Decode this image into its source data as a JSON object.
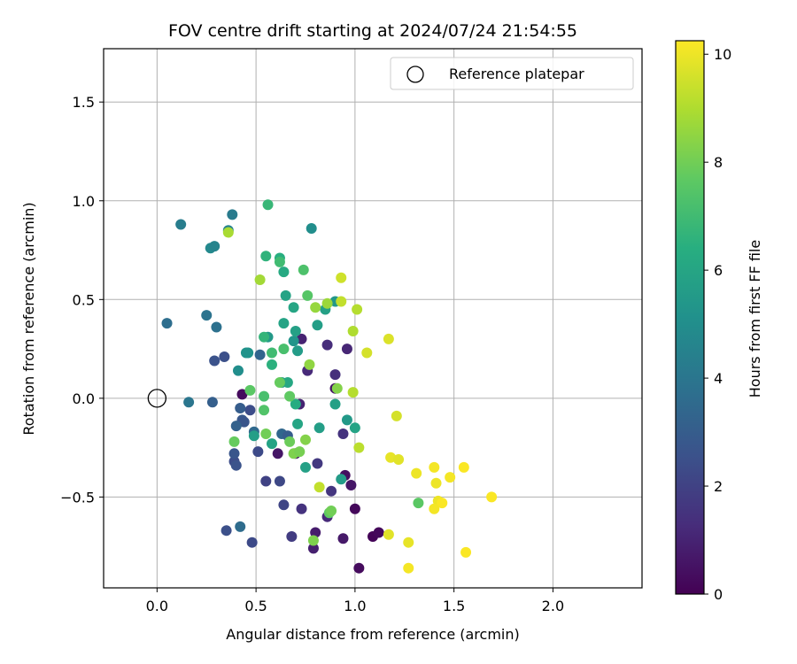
{
  "chart_data": {
    "type": "scatter",
    "title": "FOV centre drift starting at 2024/07/24 21:54:55",
    "xlabel": "Angular distance from reference (arcmin)",
    "ylabel": "Rotation from reference (arcmin)",
    "xlim": [
      -0.27,
      2.45
    ],
    "ylim": [
      -0.96,
      1.77
    ],
    "xticks": [
      0.0,
      0.5,
      1.0,
      1.5,
      2.0
    ],
    "xtick_labels": [
      "0.0",
      "0.5",
      "1.0",
      "1.5",
      "2.0"
    ],
    "yticks": [
      -0.5,
      0.0,
      0.5,
      1.0,
      1.5
    ],
    "ytick_labels": [
      "−0.5",
      "0.0",
      "0.5",
      "1.0",
      "1.5"
    ],
    "grid": true,
    "legend": {
      "placement": "top-right",
      "label": "Reference platepar",
      "marker": "open-circle"
    },
    "reference_point": {
      "x": 0.0,
      "y": 0.0
    },
    "colorbar": {
      "label": "Hours from first FF file",
      "colormap": "viridis",
      "range": [
        0,
        10.25
      ],
      "ticks": [
        0,
        2,
        4,
        6,
        8,
        10
      ],
      "tick_labels": [
        "0",
        "2",
        "4",
        "6",
        "8",
        "10"
      ]
    },
    "points": [
      {
        "x": 0.43,
        "y": 0.02,
        "c": 0.3
      },
      {
        "x": 0.9,
        "y": 0.05,
        "c": 0.5
      },
      {
        "x": 0.95,
        "y": -0.39,
        "c": 0.4
      },
      {
        "x": 0.98,
        "y": -0.44,
        "c": 0.6
      },
      {
        "x": 1.0,
        "y": -0.56,
        "c": 0.2
      },
      {
        "x": 1.02,
        "y": -0.86,
        "c": 0.3
      },
      {
        "x": 1.09,
        "y": -0.7,
        "c": 0.1
      },
      {
        "x": 1.12,
        "y": -0.68,
        "c": 0.2
      },
      {
        "x": 0.94,
        "y": -0.71,
        "c": 0.7
      },
      {
        "x": 0.8,
        "y": -0.68,
        "c": 0.8
      },
      {
        "x": 0.79,
        "y": -0.76,
        "c": 0.9
      },
      {
        "x": 0.61,
        "y": -0.28,
        "c": 0.6
      },
      {
        "x": 0.7,
        "y": -0.28,
        "c": 0.5
      },
      {
        "x": 0.72,
        "y": -0.03,
        "c": 1.0
      },
      {
        "x": 0.73,
        "y": 0.3,
        "c": 1.0
      },
      {
        "x": 0.76,
        "y": 0.14,
        "c": 1.2
      },
      {
        "x": 0.86,
        "y": 0.27,
        "c": 1.3
      },
      {
        "x": 0.9,
        "y": 0.12,
        "c": 1.4
      },
      {
        "x": 0.96,
        "y": 0.25,
        "c": 1.1
      },
      {
        "x": 0.94,
        "y": -0.18,
        "c": 1.5
      },
      {
        "x": 0.86,
        "y": -0.6,
        "c": 1.2
      },
      {
        "x": 0.88,
        "y": -0.47,
        "c": 1.6
      },
      {
        "x": 0.81,
        "y": -0.33,
        "c": 1.7
      },
      {
        "x": 0.73,
        "y": -0.56,
        "c": 1.5
      },
      {
        "x": 0.68,
        "y": -0.7,
        "c": 1.8
      },
      {
        "x": 0.64,
        "y": -0.54,
        "c": 2.1
      },
      {
        "x": 0.55,
        "y": -0.42,
        "c": 2.0
      },
      {
        "x": 0.62,
        "y": -0.42,
        "c": 2.2
      },
      {
        "x": 0.48,
        "y": -0.73,
        "c": 2.3
      },
      {
        "x": 0.35,
        "y": -0.67,
        "c": 2.5
      },
      {
        "x": 0.39,
        "y": -0.32,
        "c": 2.4
      },
      {
        "x": 0.4,
        "y": -0.34,
        "c": 2.6
      },
      {
        "x": 0.39,
        "y": -0.28,
        "c": 2.7
      },
      {
        "x": 0.51,
        "y": -0.27,
        "c": 2.3
      },
      {
        "x": 0.47,
        "y": -0.06,
        "c": 2.4
      },
      {
        "x": 0.43,
        "y": -0.11,
        "c": 2.8
      },
      {
        "x": 0.42,
        "y": -0.05,
        "c": 3.0
      },
      {
        "x": 0.44,
        "y": -0.12,
        "c": 2.7
      },
      {
        "x": 0.4,
        "y": -0.14,
        "c": 3.2
      },
      {
        "x": 0.29,
        "y": 0.19,
        "c": 2.6
      },
      {
        "x": 0.34,
        "y": 0.21,
        "c": 2.5
      },
      {
        "x": 0.28,
        "y": -0.02,
        "c": 3.1
      },
      {
        "x": 0.52,
        "y": 0.22,
        "c": 3.3
      },
      {
        "x": 0.63,
        "y": -0.18,
        "c": 3.4
      },
      {
        "x": 0.66,
        "y": -0.19,
        "c": 3.0
      },
      {
        "x": 0.49,
        "y": -0.17,
        "c": 3.5
      },
      {
        "x": 0.42,
        "y": -0.65,
        "c": 3.6
      },
      {
        "x": 0.3,
        "y": 0.36,
        "c": 3.8
      },
      {
        "x": 0.25,
        "y": 0.42,
        "c": 3.9
      },
      {
        "x": 0.05,
        "y": 0.38,
        "c": 3.7
      },
      {
        "x": 0.16,
        "y": -0.02,
        "c": 4.0
      },
      {
        "x": 0.12,
        "y": 0.88,
        "c": 4.3
      },
      {
        "x": 0.36,
        "y": 0.85,
        "c": 4.5
      },
      {
        "x": 0.38,
        "y": 0.93,
        "c": 4.2
      },
      {
        "x": 0.27,
        "y": 0.76,
        "c": 4.8
      },
      {
        "x": 0.29,
        "y": 0.77,
        "c": 4.6
      },
      {
        "x": 0.41,
        "y": 0.14,
        "c": 5.0
      },
      {
        "x": 0.46,
        "y": 0.23,
        "c": 5.2
      },
      {
        "x": 0.56,
        "y": 0.31,
        "c": 5.5
      },
      {
        "x": 0.69,
        "y": 0.29,
        "c": 5.3
      },
      {
        "x": 0.71,
        "y": 0.24,
        "c": 5.6
      },
      {
        "x": 0.81,
        "y": 0.37,
        "c": 5.7
      },
      {
        "x": 0.85,
        "y": 0.45,
        "c": 5.8
      },
      {
        "x": 0.9,
        "y": 0.49,
        "c": 5.4
      },
      {
        "x": 0.78,
        "y": 0.86,
        "c": 5.0
      },
      {
        "x": 0.64,
        "y": 0.38,
        "c": 5.9
      },
      {
        "x": 0.69,
        "y": 0.46,
        "c": 6.0
      },
      {
        "x": 0.65,
        "y": 0.52,
        "c": 5.9
      },
      {
        "x": 0.64,
        "y": 0.64,
        "c": 6.2
      },
      {
        "x": 0.62,
        "y": 0.71,
        "c": 6.4
      },
      {
        "x": 0.55,
        "y": 0.72,
        "c": 6.6
      },
      {
        "x": 0.56,
        "y": 0.98,
        "c": 6.8
      },
      {
        "x": 0.62,
        "y": 0.69,
        "c": 7.0
      },
      {
        "x": 0.7,
        "y": 0.34,
        "c": 5.8
      },
      {
        "x": 0.63,
        "y": 0.08,
        "c": 5.6
      },
      {
        "x": 0.66,
        "y": 0.08,
        "c": 6.1
      },
      {
        "x": 0.7,
        "y": -0.03,
        "c": 6.3
      },
      {
        "x": 0.9,
        "y": -0.03,
        "c": 5.8
      },
      {
        "x": 0.96,
        "y": -0.11,
        "c": 5.5
      },
      {
        "x": 1.0,
        "y": -0.15,
        "c": 5.9
      },
      {
        "x": 0.82,
        "y": -0.15,
        "c": 5.7
      },
      {
        "x": 0.71,
        "y": -0.13,
        "c": 6.0
      },
      {
        "x": 0.75,
        "y": -0.35,
        "c": 5.8
      },
      {
        "x": 0.93,
        "y": -0.41,
        "c": 5.6
      },
      {
        "x": 0.58,
        "y": -0.23,
        "c": 5.9
      },
      {
        "x": 0.49,
        "y": -0.19,
        "c": 5.7
      },
      {
        "x": 0.45,
        "y": 0.23,
        "c": 5.2
      },
      {
        "x": 0.58,
        "y": 0.17,
        "c": 6.5
      },
      {
        "x": 0.54,
        "y": 0.31,
        "c": 6.7
      },
      {
        "x": 0.58,
        "y": 0.23,
        "c": 7.0
      },
      {
        "x": 0.64,
        "y": 0.25,
        "c": 7.2
      },
      {
        "x": 0.74,
        "y": 0.65,
        "c": 7.3
      },
      {
        "x": 0.76,
        "y": 0.52,
        "c": 7.5
      },
      {
        "x": 0.54,
        "y": 0.01,
        "c": 7.2
      },
      {
        "x": 0.54,
        "y": -0.06,
        "c": 7.4
      },
      {
        "x": 0.47,
        "y": 0.04,
        "c": 7.6
      },
      {
        "x": 0.62,
        "y": 0.08,
        "c": 7.8
      },
      {
        "x": 0.67,
        "y": 0.01,
        "c": 7.7
      },
      {
        "x": 0.55,
        "y": -0.18,
        "c": 8.0
      },
      {
        "x": 0.67,
        "y": -0.22,
        "c": 7.9
      },
      {
        "x": 0.69,
        "y": -0.28,
        "c": 8.2
      },
      {
        "x": 0.72,
        "y": -0.27,
        "c": 8.1
      },
      {
        "x": 0.75,
        "y": -0.21,
        "c": 8.3
      },
      {
        "x": 0.39,
        "y": -0.22,
        "c": 7.8
      },
      {
        "x": 0.87,
        "y": -0.58,
        "c": 7.7
      },
      {
        "x": 0.88,
        "y": -0.57,
        "c": 8.0
      },
      {
        "x": 0.79,
        "y": -0.72,
        "c": 8.2
      },
      {
        "x": 1.32,
        "y": -0.53,
        "c": 7.6
      },
      {
        "x": 0.91,
        "y": 0.05,
        "c": 8.3
      },
      {
        "x": 0.77,
        "y": 0.17,
        "c": 8.5
      },
      {
        "x": 0.8,
        "y": 0.46,
        "c": 8.6
      },
      {
        "x": 0.86,
        "y": 0.48,
        "c": 8.7
      },
      {
        "x": 0.52,
        "y": 0.6,
        "c": 8.8
      },
      {
        "x": 0.36,
        "y": 0.84,
        "c": 8.9
      },
      {
        "x": 0.99,
        "y": 0.34,
        "c": 9.0
      },
      {
        "x": 0.99,
        "y": 0.03,
        "c": 9.1
      },
      {
        "x": 1.02,
        "y": -0.25,
        "c": 9.2
      },
      {
        "x": 0.82,
        "y": -0.45,
        "c": 9.3
      },
      {
        "x": 1.01,
        "y": 0.45,
        "c": 9.1
      },
      {
        "x": 0.93,
        "y": 0.49,
        "c": 9.3
      },
      {
        "x": 0.93,
        "y": 0.61,
        "c": 9.5
      },
      {
        "x": 1.06,
        "y": 0.23,
        "c": 9.6
      },
      {
        "x": 1.17,
        "y": 0.3,
        "c": 9.7
      },
      {
        "x": 1.21,
        "y": -0.09,
        "c": 9.6
      },
      {
        "x": 1.18,
        "y": -0.3,
        "c": 9.9
      },
      {
        "x": 1.22,
        "y": -0.31,
        "c": 9.8
      },
      {
        "x": 1.31,
        "y": -0.38,
        "c": 10.0
      },
      {
        "x": 1.4,
        "y": -0.35,
        "c": 10.1
      },
      {
        "x": 1.41,
        "y": -0.43,
        "c": 10.0
      },
      {
        "x": 1.48,
        "y": -0.4,
        "c": 10.1
      },
      {
        "x": 1.55,
        "y": -0.35,
        "c": 10.2
      },
      {
        "x": 1.42,
        "y": -0.52,
        "c": 10.0
      },
      {
        "x": 1.44,
        "y": -0.53,
        "c": 10.2
      },
      {
        "x": 1.4,
        "y": -0.56,
        "c": 10.1
      },
      {
        "x": 1.69,
        "y": -0.5,
        "c": 10.2
      },
      {
        "x": 1.17,
        "y": -0.69,
        "c": 9.8
      },
      {
        "x": 1.27,
        "y": -0.73,
        "c": 9.9
      },
      {
        "x": 1.56,
        "y": -0.78,
        "c": 10.2
      },
      {
        "x": 1.27,
        "y": -0.86,
        "c": 10.1
      }
    ]
  }
}
